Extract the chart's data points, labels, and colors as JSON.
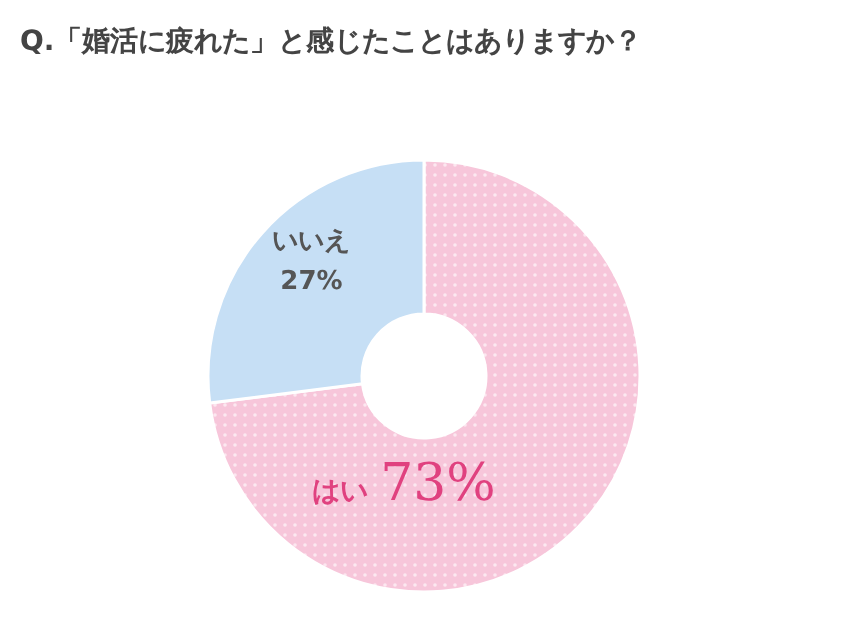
{
  "chart_data": {
    "type": "pie",
    "title": "Q.「婚活に疲れた」と感じたことはありますか？",
    "categories": [
      "はい",
      "いいえ"
    ],
    "values": [
      73,
      27
    ],
    "colors": [
      "#f7c6da",
      "#c6dff5"
    ],
    "value_labels": [
      "73%",
      "27%"
    ]
  }
}
